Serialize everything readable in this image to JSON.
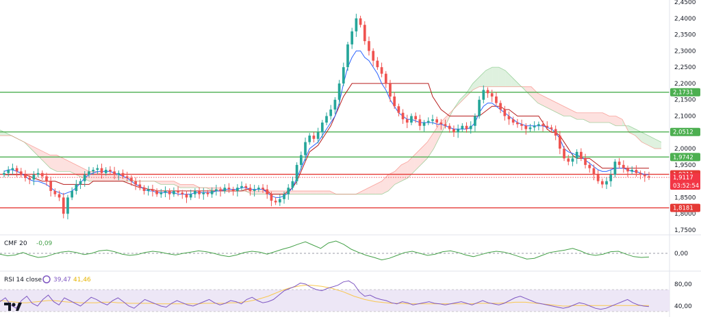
{
  "chart_data": [
    {
      "type": "candlestick",
      "ylim": [
        1.75,
        2.45
      ],
      "price_axis_ticks": [
        "2,4500",
        "2,4000",
        "2,3500",
        "2,3000",
        "2,2500",
        "2,2000",
        "2,1500",
        "2,1000",
        "2,0500",
        "2,0000",
        "1,9500",
        "1,9000",
        "1,8500",
        "1,8000",
        "1,7500"
      ],
      "price_axis_values": [
        2.45,
        2.4,
        2.35,
        2.3,
        2.25,
        2.2,
        2.15,
        2.1,
        2.05,
        2.0,
        1.95,
        1.9,
        1.85,
        1.8,
        1.75
      ],
      "levels": [
        {
          "value": 2.1731,
          "label": "2,1731",
          "color": "#4caf50"
        },
        {
          "value": 2.0512,
          "label": "2,0512",
          "color": "#4caf50"
        },
        {
          "value": 1.9742,
          "label": "1,9742",
          "color": "#4caf50"
        },
        {
          "value": 1.9211,
          "label": "1,9211",
          "color": "#e53935"
        },
        {
          "value": 1.8181,
          "label": "1,8181",
          "color": "#e53935"
        }
      ],
      "last_price": {
        "value": 1.9117,
        "label": "1,9117",
        "countdown": "03:52:54",
        "color": "#f23645"
      },
      "candles_close": [
        1.925,
        1.935,
        1.94,
        1.93,
        1.92,
        1.91,
        1.905,
        1.92,
        1.925,
        1.915,
        1.9,
        1.87,
        1.86,
        1.85,
        1.8,
        1.85,
        1.87,
        1.89,
        1.9,
        1.92,
        1.93,
        1.935,
        1.94,
        1.925,
        1.935,
        1.93,
        1.92,
        1.925,
        1.915,
        1.91,
        1.9,
        1.89,
        1.88,
        1.87,
        1.875,
        1.87,
        1.86,
        1.865,
        1.87,
        1.86,
        1.87,
        1.865,
        1.86,
        1.85,
        1.86,
        1.87,
        1.86,
        1.865,
        1.86,
        1.87,
        1.875,
        1.87,
        1.88,
        1.875,
        1.87,
        1.88,
        1.885,
        1.88,
        1.87,
        1.875,
        1.88,
        1.875,
        1.86,
        1.84,
        1.835,
        1.845,
        1.86,
        1.88,
        1.9,
        1.95,
        1.98,
        2.02,
        2.04,
        2.03,
        2.05,
        2.08,
        2.1,
        2.12,
        2.15,
        2.2,
        2.25,
        2.32,
        2.36,
        2.4,
        2.38,
        2.33,
        2.3,
        2.27,
        2.25,
        2.23,
        2.2,
        2.16,
        2.13,
        2.11,
        2.09,
        2.08,
        2.1,
        2.09,
        2.07,
        2.08,
        2.085,
        2.09,
        2.08,
        2.075,
        2.07,
        2.06,
        2.05,
        2.06,
        2.07,
        2.06,
        2.07,
        2.1,
        2.15,
        2.18,
        2.17,
        2.16,
        2.14,
        2.12,
        2.1,
        2.09,
        2.08,
        2.075,
        2.07,
        2.06,
        2.065,
        2.07,
        2.075,
        2.07,
        2.065,
        2.06,
        2.04,
        2.0,
        1.97,
        1.96,
        1.97,
        1.99,
        1.97,
        1.95,
        1.94,
        1.92,
        1.9,
        1.89,
        1.9,
        1.92,
        1.96,
        1.95,
        1.94,
        1.93,
        1.935,
        1.925,
        1.92,
        1.915,
        1.9117
      ],
      "tenkan": [
        1.93,
        1.935,
        1.935,
        1.93,
        1.925,
        1.915,
        1.905,
        1.9,
        1.9,
        1.895,
        1.89,
        1.88,
        1.87,
        1.865,
        1.86,
        1.865,
        1.87,
        1.88,
        1.895,
        1.91,
        1.92,
        1.925,
        1.93,
        1.93,
        1.93,
        1.93,
        1.925,
        1.92,
        1.915,
        1.91,
        1.9,
        1.89,
        1.885,
        1.875,
        1.87,
        1.87,
        1.865,
        1.865,
        1.865,
        1.865,
        1.865,
        1.86,
        1.86,
        1.86,
        1.86,
        1.865,
        1.865,
        1.865,
        1.865,
        1.865,
        1.87,
        1.87,
        1.875,
        1.875,
        1.875,
        1.875,
        1.88,
        1.88,
        1.875,
        1.875,
        1.875,
        1.875,
        1.865,
        1.855,
        1.85,
        1.85,
        1.855,
        1.865,
        1.88,
        1.91,
        1.94,
        1.97,
        2.0,
        2.01,
        2.02,
        2.04,
        2.06,
        2.08,
        2.1,
        2.14,
        2.2,
        2.25,
        2.28,
        2.3,
        2.3,
        2.28,
        2.27,
        2.25,
        2.23,
        2.2,
        2.18,
        2.15,
        2.13,
        2.11,
        2.1,
        2.09,
        2.09,
        2.085,
        2.08,
        2.08,
        2.08,
        2.08,
        2.075,
        2.075,
        2.07,
        2.065,
        2.06,
        2.06,
        2.06,
        2.06,
        2.065,
        2.08,
        2.11,
        2.13,
        2.14,
        2.14,
        2.13,
        2.12,
        2.11,
        2.1,
        2.09,
        2.08,
        2.075,
        2.07,
        2.07,
        2.07,
        2.07,
        2.07,
        2.065,
        2.06,
        2.05,
        2.03,
        2.0,
        1.99,
        1.985,
        1.98,
        1.975,
        1.965,
        1.955,
        1.945,
        1.935,
        1.93,
        1.93,
        1.935,
        1.94,
        1.94,
        1.94,
        1.935,
        1.93,
        1.93,
        1.925,
        1.92,
        1.92
      ],
      "kijun": [
        1.92,
        1.92,
        1.92,
        1.92,
        1.92,
        1.92,
        1.915,
        1.91,
        1.905,
        1.9,
        1.9,
        1.9,
        1.9,
        1.895,
        1.89,
        1.89,
        1.89,
        1.89,
        1.89,
        1.89,
        1.89,
        1.9,
        1.9,
        1.9,
        1.9,
        1.9,
        1.9,
        1.9,
        1.9,
        1.895,
        1.89,
        1.885,
        1.88,
        1.88,
        1.875,
        1.875,
        1.87,
        1.87,
        1.87,
        1.87,
        1.87,
        1.87,
        1.87,
        1.87,
        1.87,
        1.87,
        1.87,
        1.87,
        1.87,
        1.87,
        1.87,
        1.87,
        1.87,
        1.87,
        1.87,
        1.87,
        1.87,
        1.875,
        1.875,
        1.875,
        1.875,
        1.875,
        1.87,
        1.86,
        1.86,
        1.86,
        1.86,
        1.87,
        1.88,
        1.9,
        1.93,
        1.96,
        1.99,
        2.0,
        2.01,
        2.03,
        2.05,
        2.07,
        2.1,
        2.13,
        2.16,
        2.18,
        2.2,
        2.2,
        2.2,
        2.2,
        2.2,
        2.2,
        2.2,
        2.2,
        2.2,
        2.2,
        2.2,
        2.2,
        2.2,
        2.2,
        2.2,
        2.2,
        2.2,
        2.2,
        2.2,
        2.16,
        2.14,
        2.12,
        2.11,
        2.1,
        2.1,
        2.1,
        2.1,
        2.1,
        2.1,
        2.1,
        2.1,
        2.11,
        2.12,
        2.13,
        2.13,
        2.13,
        2.12,
        2.12,
        2.11,
        2.1,
        2.1,
        2.1,
        2.1,
        2.1,
        2.1,
        2.08,
        2.06,
        2.05,
        2.05,
        2.04,
        2.02,
        2.0,
        1.98,
        1.97,
        1.97,
        1.97,
        1.97,
        1.96,
        1.95,
        1.94,
        1.94,
        1.94,
        1.94,
        1.94,
        1.94,
        1.94,
        1.94,
        1.94,
        1.94,
        1.94,
        1.94
      ],
      "cloud_a": [
        2.07,
        2.06,
        2.05,
        2.04,
        2.03,
        2.02,
        2.0,
        1.98,
        1.96,
        1.94,
        1.93,
        1.93,
        1.93,
        1.92,
        1.91,
        1.9,
        1.9,
        1.9,
        1.9,
        1.9,
        1.9,
        1.9,
        1.9,
        1.9,
        1.9,
        1.9,
        1.89,
        1.89,
        1.89,
        1.88,
        1.88,
        1.88,
        1.88,
        1.88,
        1.87,
        1.87,
        1.87,
        1.87,
        1.87,
        1.87,
        1.86,
        1.86,
        1.86,
        1.86,
        1.86,
        1.86,
        1.86,
        1.86,
        1.86,
        1.86,
        1.86,
        1.86,
        1.86,
        1.86,
        1.86,
        1.86,
        1.86,
        1.86,
        1.86,
        1.86,
        1.86,
        1.87,
        1.89,
        1.9,
        1.91,
        1.93,
        1.95,
        1.97,
        2.0,
        2.04,
        2.08,
        2.12,
        2.15,
        2.17,
        2.2,
        2.22,
        2.24,
        2.25,
        2.25,
        2.24,
        2.22,
        2.2,
        2.18,
        2.16,
        2.14,
        2.13,
        2.12,
        2.11,
        2.1,
        2.1,
        2.09,
        2.09,
        2.08,
        2.08,
        2.08,
        2.08,
        2.07,
        2.07,
        2.07,
        2.06,
        2.05,
        2.04,
        2.03,
        2.02
      ],
      "cloud_b": [
        2.04,
        2.04,
        2.04,
        2.04,
        2.03,
        2.02,
        2.01,
        2.0,
        1.99,
        1.98,
        1.98,
        1.97,
        1.96,
        1.95,
        1.94,
        1.93,
        1.93,
        1.92,
        1.92,
        1.92,
        1.91,
        1.91,
        1.9,
        1.9,
        1.9,
        1.9,
        1.9,
        1.9,
        1.9,
        1.89,
        1.89,
        1.89,
        1.88,
        1.88,
        1.88,
        1.88,
        1.87,
        1.87,
        1.87,
        1.87,
        1.87,
        1.87,
        1.87,
        1.87,
        1.87,
        1.87,
        1.87,
        1.87,
        1.87,
        1.87,
        1.87,
        1.87,
        1.87,
        1.86,
        1.86,
        1.86,
        1.86,
        1.87,
        1.88,
        1.89,
        1.9,
        1.92,
        1.93,
        1.95,
        1.96,
        1.98,
        2.0,
        2.02,
        2.05,
        2.08,
        2.1,
        2.12,
        2.14,
        2.16,
        2.18,
        2.19,
        2.19,
        2.19,
        2.19,
        2.19,
        2.19,
        2.19,
        2.19,
        2.19,
        2.17,
        2.16,
        2.15,
        2.14,
        2.13,
        2.12,
        2.11,
        2.11,
        2.11,
        2.11,
        2.11,
        2.1,
        2.1,
        2.09,
        2.05,
        2.04,
        2.02,
        2.01,
        2.0,
        2.0
      ]
    },
    {
      "type": "line",
      "name": "CMF 20",
      "title": "CMF 20",
      "current_value": "-0,09",
      "ylim": [
        -0.4,
        0.4
      ],
      "axis_ticks": [
        "0,00"
      ],
      "color": "#43a047",
      "values": [
        -0.02,
        -0.06,
        -0.04,
        0.02,
        -0.05,
        -0.1,
        -0.08,
        -0.02,
        0.03,
        0.05,
        0.02,
        -0.03,
        0.0,
        0.06,
        0.08,
        0.04,
        -0.02,
        -0.05,
        -0.03,
        0.02,
        0.05,
        0.03,
        -0.01,
        -0.04,
        0.0,
        0.03,
        0.06,
        0.04,
        0.0,
        -0.05,
        -0.08,
        -0.04,
        0.02,
        0.05,
        0.03,
        -0.02,
        0.04,
        0.1,
        0.15,
        0.22,
        0.28,
        0.2,
        0.12,
        0.25,
        0.3,
        0.22,
        0.1,
        0.02,
        -0.05,
        -0.1,
        -0.16,
        -0.12,
        -0.05,
        0.02,
        0.05,
        0.0,
        -0.05,
        -0.02,
        0.04,
        0.06,
        0.02,
        -0.04,
        -0.08,
        -0.03,
        0.02,
        0.05,
        0.03,
        -0.02,
        -0.08,
        -0.14,
        -0.12,
        -0.05,
        0.02,
        0.05,
        0.08,
        0.12,
        0.06,
        -0.02,
        -0.05,
        -0.02,
        0.04,
        0.05,
        -0.02,
        -0.08,
        -0.1,
        -0.09
      ]
    },
    {
      "type": "line",
      "name": "RSI 14 close",
      "title": "RSI 14 close",
      "current_values": [
        "39,47",
        "41,46"
      ],
      "ylim": [
        20,
        100
      ],
      "axis_ticks": [
        "80,00",
        "40,00"
      ],
      "band": [
        30,
        70
      ],
      "colors": {
        "rsi": "#7e57c2",
        "ma": "#f9c74f",
        "band": "#ede7f6"
      },
      "rsi": [
        48,
        55,
        42,
        36,
        50,
        58,
        45,
        40,
        52,
        60,
        48,
        42,
        55,
        50,
        45,
        40,
        48,
        56,
        52,
        46,
        42,
        50,
        55,
        48,
        40,
        36,
        44,
        52,
        48,
        44,
        40,
        38,
        45,
        50,
        46,
        42,
        40,
        44,
        48,
        52,
        46,
        42,
        45,
        50,
        48,
        44,
        52,
        56,
        50,
        46,
        48,
        52,
        60,
        68,
        72,
        76,
        82,
        80,
        74,
        70,
        68,
        72,
        75,
        78,
        84,
        86,
        80,
        66,
        58,
        60,
        55,
        52,
        50,
        46,
        44,
        48,
        46,
        42,
        44,
        46,
        48,
        45,
        44,
        42,
        44,
        46,
        48,
        45,
        42,
        46,
        50,
        46,
        44,
        42,
        45,
        50,
        55,
        58,
        54,
        50,
        46,
        44,
        42,
        40,
        38,
        36,
        38,
        42,
        46,
        44,
        40,
        36,
        34,
        36,
        40,
        44,
        48,
        52,
        46,
        42,
        40,
        39
      ],
      "ma": [
        50,
        49,
        48,
        47,
        46,
        46,
        47,
        48,
        49,
        50,
        50,
        49,
        48,
        47,
        47,
        46,
        46,
        46,
        46,
        47,
        47,
        47,
        46,
        46,
        45,
        45,
        45,
        45,
        45,
        44,
        44,
        44,
        44,
        44,
        44,
        44,
        44,
        44,
        45,
        45,
        45,
        45,
        45,
        46,
        46,
        47,
        48,
        50,
        52,
        55,
        58,
        62,
        66,
        70,
        73,
        75,
        77,
        78,
        78,
        77,
        76,
        74,
        72,
        69,
        66,
        62,
        58,
        55,
        52,
        50,
        48,
        47,
        46,
        45,
        45,
        45,
        44,
        44,
        44,
        44,
        44,
        44,
        44,
        44,
        44,
        44,
        44,
        44,
        44,
        45,
        45,
        45,
        45,
        45,
        46,
        46,
        47,
        47,
        47,
        46,
        45,
        44,
        43,
        42,
        41,
        40,
        40,
        41,
        41,
        41,
        41,
        41,
        41,
        41,
        41,
        41,
        41,
        41,
        41,
        41,
        41,
        41
      ]
    }
  ],
  "branding": {
    "logo_text": "TV"
  }
}
